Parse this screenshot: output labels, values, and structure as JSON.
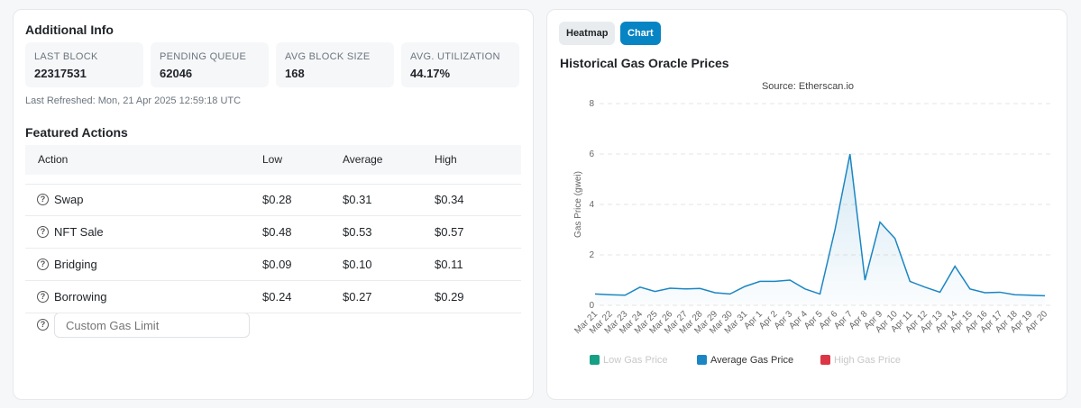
{
  "additional_info": {
    "title": "Additional Info",
    "stats": [
      {
        "label": "LAST BLOCK",
        "value": "22317531"
      },
      {
        "label": "PENDING QUEUE",
        "value": "62046"
      },
      {
        "label": "AVG BLOCK SIZE",
        "value": "168"
      },
      {
        "label": "AVG. UTILIZATION",
        "value": "44.17%"
      }
    ],
    "last_refreshed": "Last Refreshed: Mon, 21 Apr 2025 12:59:18 UTC"
  },
  "featured_actions": {
    "title": "Featured Actions",
    "columns": [
      "Action",
      "Low",
      "Average",
      "High"
    ],
    "rows": [
      [
        "Swap",
        "$0.28",
        "$0.31",
        "$0.34"
      ],
      [
        "NFT Sale",
        "$0.48",
        "$0.53",
        "$0.57"
      ],
      [
        "Bridging",
        "$0.09",
        "$0.10",
        "$0.11"
      ],
      [
        "Borrowing",
        "$0.24",
        "$0.27",
        "$0.29"
      ]
    ],
    "custom_gas_limit_placeholder": "Custom Gas Limit"
  },
  "tabs": [
    "Heatmap",
    "Chart"
  ],
  "active_tab": 1,
  "chart_data": {
    "type": "line",
    "title": "Historical Gas Oracle Prices",
    "subtitle": "Source: Etherscan.io",
    "y_label": "Gas Price (gwei)",
    "categories": [
      "Mar 21",
      "Mar 22",
      "Mar 23",
      "Mar 24",
      "Mar 25",
      "Mar 26",
      "Mar 27",
      "Mar 28",
      "Mar 29",
      "Mar 30",
      "Mar 31",
      "Apr 1",
      "Apr 2",
      "Apr 3",
      "Apr 4",
      "Apr 5",
      "Apr 6",
      "Apr 7",
      "Apr 8",
      "Apr 9",
      "Apr 10",
      "Apr 11",
      "Apr 12",
      "Apr 13",
      "Apr 14",
      "Apr 15",
      "Apr 16",
      "Apr 17",
      "Apr 18",
      "Apr 19",
      "Apr 20"
    ],
    "series": [
      {
        "name": "Low Gas Price",
        "color": "#16a085",
        "visible": false
      },
      {
        "name": "Average Gas Price",
        "color": "#1b86c3",
        "visible": true,
        "values": [
          0.45,
          0.42,
          0.4,
          0.72,
          0.55,
          0.68,
          0.65,
          0.67,
          0.5,
          0.45,
          0.75,
          0.95,
          0.95,
          1.0,
          0.65,
          0.45,
          3.0,
          6.0,
          1.0,
          3.3,
          2.65,
          0.95,
          0.72,
          0.52,
          1.55,
          0.65,
          0.5,
          0.52,
          0.42,
          0.4,
          0.38
        ]
      },
      {
        "name": "High Gas Price",
        "color": "#dc3545",
        "visible": false
      }
    ],
    "ylim": [
      0,
      8
    ],
    "yticks": [
      0,
      2,
      4,
      6,
      8
    ],
    "grid": true
  }
}
